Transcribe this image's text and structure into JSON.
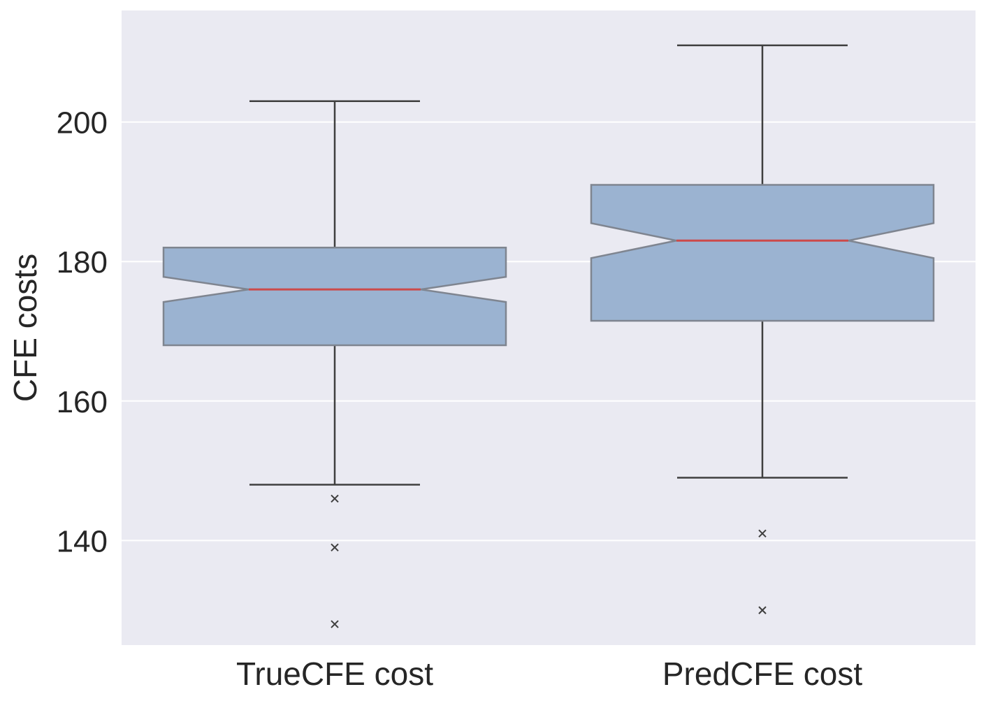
{
  "chart_data": {
    "type": "box",
    "title": "",
    "xlabel": "",
    "ylabel": "CFE costs",
    "ylim": [
      125,
      216
    ],
    "yticks": [
      140,
      160,
      180,
      200
    ],
    "grid": true,
    "notched": true,
    "categories": [
      "TrueCFE cost",
      "PredCFE cost"
    ],
    "series": [
      {
        "category": "TrueCFE cost",
        "whisker_low": 148,
        "q1": 168,
        "median": 176,
        "q3": 182,
        "whisker_high": 203,
        "notch_low": 174.2,
        "notch_high": 177.8,
        "outliers": [
          146,
          139,
          128
        ]
      },
      {
        "category": "PredCFE cost",
        "whisker_low": 149,
        "q1": 171.5,
        "median": 183,
        "q3": 191,
        "whisker_high": 211,
        "notch_low": 180.5,
        "notch_high": 185.5,
        "outliers": [
          141,
          130
        ]
      }
    ],
    "colors": {
      "plot_background": "#eaeaf2",
      "grid": "#ffffff",
      "box_fill": "#9bb3d1",
      "box_edge": "#7f8590",
      "whisker": "#3f3f3f",
      "median": "#cc4a4a",
      "outlier": "#3f3f3f",
      "text": "#262626"
    }
  }
}
